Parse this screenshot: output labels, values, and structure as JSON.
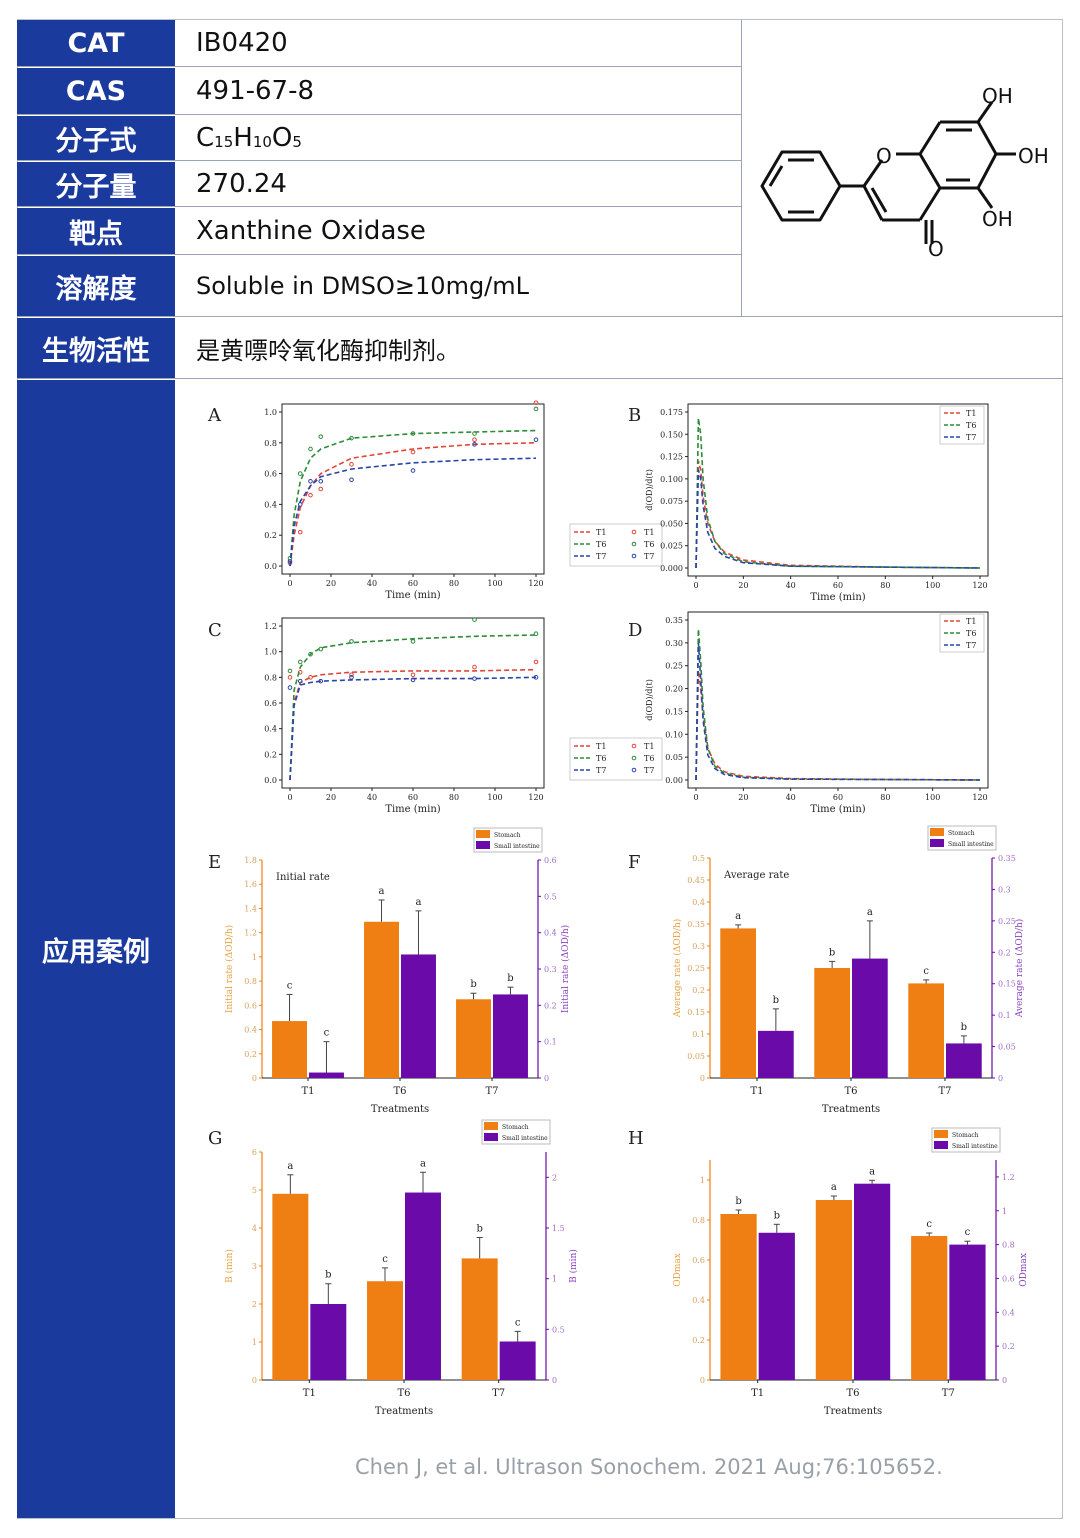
{
  "info": {
    "rows": [
      {
        "key": "CAT",
        "value": "IB0420"
      },
      {
        "key": "CAS",
        "value": "491-67-8"
      },
      {
        "key": "分子式",
        "value": "C15H10O5"
      },
      {
        "key": "分子量",
        "value": "270.24"
      },
      {
        "key": "靶点",
        "value": "Xanthine Oxidase"
      },
      {
        "key": "溶解度",
        "value": "Soluble in DMSO≥10mg/mL"
      },
      {
        "key": "生物活性",
        "value": "是黄嘌呤氧化酶抑制剂。"
      },
      {
        "key": "应用案例",
        "value": ""
      }
    ],
    "formula": {
      "c": "C",
      "c_sub": "15",
      "h": "H",
      "h_sub": "10",
      "o": "O",
      "o_sub": "5"
    }
  },
  "structure": {
    "labels": [
      "OH",
      "OH",
      "OH",
      "O",
      "O"
    ]
  },
  "panels": {
    "A": {
      "letter": "A",
      "xlabel": "Time (min)",
      "xticks": [
        "0",
        "20",
        "40",
        "60",
        "80",
        "100",
        "120"
      ],
      "yticks": [
        "0.0",
        "0.2",
        "0.4",
        "0.6",
        "0.8",
        "1.0"
      ],
      "legend": [
        "T1",
        "T6",
        "T7"
      ]
    },
    "B": {
      "letter": "B",
      "xlabel": "Time (min)",
      "ylabel": "d(OD)/d(t)",
      "xticks": [
        "0",
        "20",
        "40",
        "60",
        "80",
        "100",
        "120"
      ],
      "yticks": [
        "0.000",
        "0.025",
        "0.050",
        "0.075",
        "0.100",
        "0.125",
        "0.150",
        "0.175"
      ],
      "legend": [
        "T1",
        "T6",
        "T7"
      ]
    },
    "C": {
      "letter": "C",
      "xlabel": "Time (min)",
      "xticks": [
        "0",
        "20",
        "40",
        "60",
        "80",
        "100",
        "120"
      ],
      "yticks": [
        "0.0",
        "0.2",
        "0.4",
        "0.6",
        "0.8",
        "1.0",
        "1.2"
      ],
      "legend": [
        "T1",
        "T6",
        "T7"
      ]
    },
    "D": {
      "letter": "D",
      "xlabel": "Time (min)",
      "ylabel": "d(OD)/d(t)",
      "xticks": [
        "0",
        "20",
        "40",
        "60",
        "80",
        "100",
        "120"
      ],
      "yticks": [
        "0.00",
        "0.05",
        "0.10",
        "0.15",
        "0.20",
        "0.25",
        "0.30",
        "0.35"
      ],
      "legend": [
        "T1",
        "T6",
        "T7"
      ]
    },
    "E": {
      "letter": "E",
      "title": "Initial rate",
      "xlabel": "Treatments",
      "ylabel_left": "Initial rate (ΔOD/h)",
      "ylabel_right": "Initial rate (ΔOD/h)",
      "categories": [
        "T1",
        "T6",
        "T7"
      ],
      "yticks_left": [
        "0",
        "0.2",
        "0.4",
        "0.6",
        "0.8",
        "1",
        "1.2",
        "1.4",
        "1.6",
        "1.8"
      ],
      "yticks_right": [
        "0",
        "0.1",
        "0.2",
        "0.3",
        "0.4",
        "0.5",
        "0.6"
      ],
      "legend": [
        "Stomach",
        "Small intestine"
      ]
    },
    "F": {
      "letter": "F",
      "title": "Average rate",
      "xlabel": "Treatments",
      "ylabel_left": "Average rate (ΔOD/h)",
      "ylabel_right": "Average rate (ΔOD/h)",
      "categories": [
        "T1",
        "T6",
        "T7"
      ],
      "yticks_left": [
        "0",
        "0.05",
        "0.1",
        "0.15",
        "0.2",
        "0.25",
        "0.3",
        "0.35",
        "0.4",
        "0.45",
        "0.5"
      ],
      "yticks_right": [
        "0",
        "0.05",
        "0.1",
        "0.15",
        "0.2",
        "0.25",
        "0.3",
        "0.35"
      ],
      "legend": [
        "Stomach",
        "Small intestine"
      ]
    },
    "G": {
      "letter": "G",
      "xlabel": "Treatments",
      "ylabel_left": "B (min)",
      "ylabel_right": "B (min)",
      "categories": [
        "T1",
        "T6",
        "T7"
      ],
      "yticks_left": [
        "0",
        "1",
        "2",
        "3",
        "4",
        "5",
        "6"
      ],
      "yticks_right": [
        "0",
        "0.5",
        "1",
        "1.5",
        "2"
      ],
      "legend": [
        "Stomach",
        "Small intestine"
      ]
    },
    "H": {
      "letter": "H",
      "xlabel": "Treatments",
      "ylabel_left": "ODmax",
      "ylabel_right": "ODmax",
      "categories": [
        "T1",
        "T6",
        "T7"
      ],
      "yticks_left": [
        "0",
        "0.2",
        "0.4",
        "0.6",
        "0.8",
        "1"
      ],
      "yticks_right": [
        "0",
        "0.2",
        "0.4",
        "0.6",
        "0.8",
        "1",
        "1.2"
      ],
      "legend": [
        "Stomach",
        "Small intestine"
      ]
    }
  },
  "chart_data": [
    {
      "type": "line",
      "panel": "A",
      "x": [
        0,
        2,
        5,
        10,
        15,
        30,
        60,
        90,
        120
      ],
      "series": [
        {
          "name": "T1",
          "fit": [
            0,
            0.2,
            0.38,
            0.52,
            0.6,
            0.7,
            0.76,
            0.79,
            0.8
          ],
          "points": [
            [
              0,
              0.02
            ],
            [
              5,
              0.22
            ],
            [
              10,
              0.46
            ],
            [
              15,
              0.5
            ],
            [
              30,
              0.66
            ],
            [
              60,
              0.74
            ],
            [
              90,
              0.82
            ],
            [
              120,
              1.06
            ]
          ]
        },
        {
          "name": "T6",
          "fit": [
            0,
            0.33,
            0.55,
            0.7,
            0.76,
            0.83,
            0.86,
            0.87,
            0.88
          ],
          "points": [
            [
              0,
              0.05
            ],
            [
              5,
              0.6
            ],
            [
              10,
              0.76
            ],
            [
              15,
              0.84
            ],
            [
              30,
              0.83
            ],
            [
              60,
              0.86
            ],
            [
              90,
              0.86
            ],
            [
              120,
              1.02
            ]
          ]
        },
        {
          "name": "T7",
          "fit": [
            0,
            0.26,
            0.42,
            0.52,
            0.58,
            0.63,
            0.67,
            0.69,
            0.7
          ],
          "points": [
            [
              0,
              0.03
            ],
            [
              5,
              0.4
            ],
            [
              10,
              0.55
            ],
            [
              15,
              0.55
            ],
            [
              30,
              0.56
            ],
            [
              60,
              0.62
            ],
            [
              90,
              0.79
            ],
            [
              120,
              0.82
            ]
          ]
        }
      ],
      "colors": [
        "#e0453a",
        "#2e8b3a",
        "#2a44a8"
      ],
      "ylim": [
        0,
        1.0
      ],
      "xlim": [
        0,
        120
      ]
    },
    {
      "type": "line",
      "panel": "B",
      "x": [
        0,
        1,
        2,
        3,
        5,
        8,
        12,
        20,
        40,
        80,
        120
      ],
      "series": [
        {
          "name": "T1",
          "values": [
            0,
            0.12,
            0.11,
            0.08,
            0.05,
            0.03,
            0.018,
            0.009,
            0.003,
            0.001,
            0
          ]
        },
        {
          "name": "T6",
          "values": [
            0,
            0.168,
            0.15,
            0.1,
            0.055,
            0.03,
            0.016,
            0.007,
            0.002,
            0.001,
            0
          ]
        },
        {
          "name": "T7",
          "values": [
            0,
            0.11,
            0.1,
            0.07,
            0.04,
            0.022,
            0.013,
            0.006,
            0.002,
            0.001,
            0
          ]
        }
      ],
      "colors": [
        "#e0453a",
        "#2e8b3a",
        "#2a44a8"
      ],
      "ylim": [
        0,
        0.175
      ],
      "xlim": [
        0,
        120
      ]
    },
    {
      "type": "line",
      "panel": "C",
      "x": [
        0,
        2,
        5,
        10,
        15,
        30,
        60,
        90,
        120
      ],
      "series": [
        {
          "name": "T1",
          "fit": [
            0,
            0.6,
            0.76,
            0.8,
            0.82,
            0.84,
            0.85,
            0.85,
            0.86
          ],
          "points": [
            [
              0,
              0.8
            ],
            [
              5,
              0.84
            ],
            [
              10,
              0.8
            ],
            [
              30,
              0.82
            ],
            [
              60,
              0.82
            ],
            [
              90,
              0.88
            ],
            [
              120,
              0.92
            ]
          ]
        },
        {
          "name": "T6",
          "fit": [
            0,
            0.7,
            0.88,
            0.98,
            1.03,
            1.07,
            1.1,
            1.12,
            1.13
          ],
          "points": [
            [
              0,
              0.85
            ],
            [
              5,
              0.92
            ],
            [
              10,
              0.98
            ],
            [
              15,
              1.02
            ],
            [
              30,
              1.08
            ],
            [
              60,
              1.08
            ],
            [
              90,
              1.25
            ],
            [
              120,
              1.14
            ]
          ]
        },
        {
          "name": "T7",
          "fit": [
            0,
            0.58,
            0.74,
            0.76,
            0.77,
            0.78,
            0.79,
            0.79,
            0.8
          ],
          "points": [
            [
              0,
              0.72
            ],
            [
              5,
              0.77
            ],
            [
              15,
              0.77
            ],
            [
              30,
              0.8
            ],
            [
              60,
              0.78
            ],
            [
              90,
              0.79
            ],
            [
              120,
              0.8
            ]
          ]
        }
      ],
      "colors": [
        "#e0453a",
        "#2e8b3a",
        "#2a44a8"
      ],
      "ylim": [
        0,
        1.2
      ],
      "xlim": [
        0,
        120
      ]
    },
    {
      "type": "line",
      "panel": "D",
      "x": [
        0,
        1,
        2,
        3,
        5,
        8,
        12,
        20,
        40,
        80,
        120
      ],
      "series": [
        {
          "name": "T1",
          "values": [
            0,
            0.24,
            0.2,
            0.14,
            0.07,
            0.035,
            0.018,
            0.008,
            0.003,
            0.001,
            0
          ]
        },
        {
          "name": "T6",
          "values": [
            0,
            0.33,
            0.26,
            0.16,
            0.07,
            0.03,
            0.015,
            0.006,
            0.002,
            0.001,
            0
          ]
        },
        {
          "name": "T7",
          "values": [
            0,
            0.3,
            0.22,
            0.13,
            0.055,
            0.025,
            0.012,
            0.005,
            0.002,
            0.001,
            0
          ]
        }
      ],
      "colors": [
        "#e0453a",
        "#2e8b3a",
        "#2a44a8"
      ],
      "ylim": [
        0,
        0.35
      ],
      "xlim": [
        0,
        120
      ]
    },
    {
      "type": "bar",
      "panel": "E",
      "categories": [
        "T1",
        "T6",
        "T7"
      ],
      "series": [
        {
          "name": "Stomach",
          "axis": "left",
          "values": [
            0.47,
            1.29,
            0.65
          ],
          "errors": [
            0.22,
            0.18,
            0.05
          ],
          "letters": [
            "c",
            "a",
            "b"
          ]
        },
        {
          "name": "Small intestine",
          "axis": "right",
          "values": [
            0.015,
            0.34,
            0.23
          ],
          "errors": [
            0.085,
            0.12,
            0.02
          ],
          "letters": [
            "c",
            "a",
            "b"
          ]
        }
      ],
      "ylim_left": [
        0,
        1.8
      ],
      "ylim_right": [
        0,
        0.6
      ],
      "colors": [
        "#f07f13",
        "#6a0aa8"
      ]
    },
    {
      "type": "bar",
      "panel": "F",
      "categories": [
        "T1",
        "T6",
        "T7"
      ],
      "series": [
        {
          "name": "Stomach",
          "axis": "left",
          "values": [
            0.34,
            0.25,
            0.215
          ],
          "errors": [
            0.008,
            0.015,
            0.008
          ],
          "letters": [
            "a",
            "b",
            "c"
          ]
        },
        {
          "name": "Small intestine",
          "axis": "right",
          "values": [
            0.075,
            0.19,
            0.055
          ],
          "errors": [
            0.035,
            0.06,
            0.012
          ],
          "letters": [
            "b",
            "a",
            "b"
          ]
        }
      ],
      "ylim_left": [
        0,
        0.5
      ],
      "ylim_right": [
        0,
        0.35
      ],
      "colors": [
        "#f07f13",
        "#6a0aa8"
      ]
    },
    {
      "type": "bar",
      "panel": "G",
      "categories": [
        "T1",
        "T6",
        "T7"
      ],
      "series": [
        {
          "name": "Stomach",
          "axis": "left",
          "values": [
            4.9,
            2.6,
            3.2
          ],
          "errors": [
            0.5,
            0.35,
            0.55
          ],
          "letters": [
            "a",
            "c",
            "b"
          ]
        },
        {
          "name": "Small intestine",
          "axis": "right",
          "values": [
            0.75,
            1.85,
            0.38
          ],
          "errors": [
            0.2,
            0.2,
            0.1
          ],
          "letters": [
            "b",
            "a",
            "c"
          ]
        }
      ],
      "ylim_left": [
        0,
        6
      ],
      "ylim_right": [
        0,
        2.25
      ],
      "colors": [
        "#f07f13",
        "#6a0aa8"
      ]
    },
    {
      "type": "bar",
      "panel": "H",
      "categories": [
        "T1",
        "T6",
        "T7"
      ],
      "series": [
        {
          "name": "Stomach",
          "axis": "left",
          "values": [
            0.83,
            0.9,
            0.72
          ],
          "errors": [
            0.02,
            0.02,
            0.015
          ],
          "letters": [
            "b",
            "a",
            "c"
          ]
        },
        {
          "name": "Small intestine",
          "axis": "right",
          "values": [
            0.87,
            1.16,
            0.8
          ],
          "errors": [
            0.05,
            0.02,
            0.02
          ],
          "letters": [
            "b",
            "a",
            "c"
          ]
        }
      ],
      "ylim_left": [
        0,
        1.1
      ],
      "ylim_right": [
        0,
        1.3
      ],
      "colors": [
        "#f07f13",
        "#6a0aa8"
      ]
    }
  ],
  "citation": "Chen J, et al. Ultrason Sonochem. 2021 Aug;76:105652.",
  "colors": {
    "header_blue": "#1a3a9e",
    "stomach": "#f07f13",
    "intestine": "#6a0aa8",
    "t1": "#e0453a",
    "t6": "#2e8b3a",
    "t7": "#2a44a8"
  }
}
